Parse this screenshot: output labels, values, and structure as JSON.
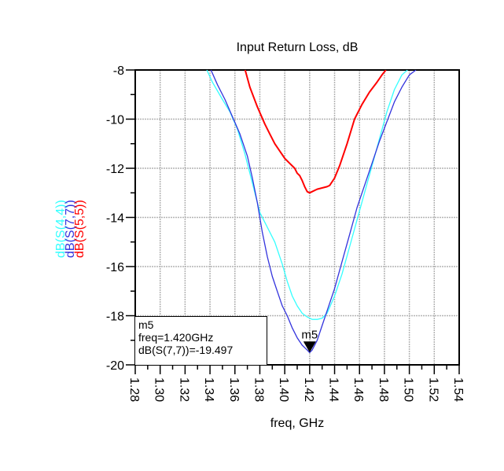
{
  "chart_data": {
    "type": "line",
    "title": "Input Return Loss, dB",
    "xlabel": "freq, GHz",
    "ylabel": "",
    "xlim": [
      1.28,
      1.54
    ],
    "ylim": [
      -20,
      -8
    ],
    "grid": true,
    "xticks": [
      "1.28",
      "1.30",
      "1.32",
      "1.34",
      "1.36",
      "1.38",
      "1.40",
      "1.42",
      "1.44",
      "1.46",
      "1.48",
      "1.50",
      "1.52",
      "1.54"
    ],
    "yticks": [
      "-8",
      "-10",
      "-12",
      "-14",
      "-16",
      "-18",
      "-20"
    ],
    "legend_position": "left-rotated",
    "series": [
      {
        "name": "dB(S(4,4))",
        "color": "#33ffff",
        "x": [
          1.3375,
          1.342,
          1.35,
          1.356,
          1.362,
          1.368,
          1.374,
          1.38,
          1.386,
          1.392,
          1.398,
          1.402,
          1.406,
          1.41,
          1.414,
          1.418,
          1.422,
          1.426,
          1.43,
          1.434,
          1.44,
          1.446,
          1.452,
          1.458,
          1.464,
          1.47,
          1.476,
          1.482,
          1.488,
          1.494,
          1.4985
        ],
        "y": [
          -8.0,
          -8.5,
          -9.2,
          -9.7,
          -10.4,
          -11.4,
          -12.6,
          -13.8,
          -14.4,
          -15.0,
          -15.9,
          -16.6,
          -17.2,
          -17.6,
          -17.9,
          -18.05,
          -18.15,
          -18.15,
          -18.1,
          -17.9,
          -17.2,
          -16.3,
          -15.2,
          -14.1,
          -13.0,
          -11.9,
          -10.8,
          -9.7,
          -8.8,
          -8.2,
          -8.0
        ]
      },
      {
        "name": "dB(S(7,7))",
        "color": "#3333dd",
        "x": [
          1.3408,
          1.346,
          1.352,
          1.358,
          1.364,
          1.37,
          1.374,
          1.378,
          1.382,
          1.386,
          1.39,
          1.394,
          1.398,
          1.402,
          1.406,
          1.41,
          1.414,
          1.418,
          1.42,
          1.422,
          1.426,
          1.43,
          1.434,
          1.44,
          1.446,
          1.452,
          1.458,
          1.464,
          1.47,
          1.476,
          1.482,
          1.488,
          1.494,
          1.5,
          1.5053
        ],
        "y": [
          -8.0,
          -8.6,
          -9.2,
          -9.9,
          -10.6,
          -11.5,
          -12.4,
          -13.4,
          -14.6,
          -15.6,
          -16.4,
          -17.0,
          -17.6,
          -18.0,
          -18.5,
          -18.9,
          -19.2,
          -19.4,
          -19.5,
          -19.4,
          -19.0,
          -18.4,
          -17.8,
          -16.9,
          -15.8,
          -14.7,
          -13.6,
          -12.7,
          -11.8,
          -10.9,
          -10.1,
          -9.3,
          -8.7,
          -8.2,
          -8.0
        ]
      },
      {
        "name": "dB(S(5,5))",
        "color": "#ff0000",
        "x": [
          1.3682,
          1.372,
          1.378,
          1.384,
          1.388,
          1.392,
          1.396,
          1.4,
          1.404,
          1.408,
          1.41,
          1.412,
          1.414,
          1.416,
          1.418,
          1.42,
          1.422,
          1.426,
          1.43,
          1.434,
          1.436,
          1.44,
          1.444,
          1.45,
          1.456,
          1.462,
          1.468,
          1.474,
          1.478,
          1.4812
        ],
        "y": [
          -8.0,
          -8.7,
          -9.5,
          -10.2,
          -10.6,
          -11.0,
          -11.3,
          -11.6,
          -11.8,
          -12.0,
          -12.2,
          -12.3,
          -12.5,
          -12.75,
          -12.95,
          -13.0,
          -12.95,
          -12.85,
          -12.8,
          -12.75,
          -12.7,
          -12.4,
          -11.9,
          -11.0,
          -10.0,
          -9.4,
          -8.9,
          -8.5,
          -8.2,
          -8.0
        ]
      }
    ],
    "annotations": [
      {
        "name": "m5",
        "x": 1.42,
        "y": -19.497,
        "series": "dB(S(7,7))"
      }
    ]
  },
  "marker": {
    "label": "m5",
    "line1": "m5",
    "line2": "freq=1.420GHz",
    "line3": "dB(S(7,7))=-19.497"
  },
  "colors": {
    "axis": "#000000",
    "grid": "#b4b4b4",
    "background": "#ffffff"
  }
}
